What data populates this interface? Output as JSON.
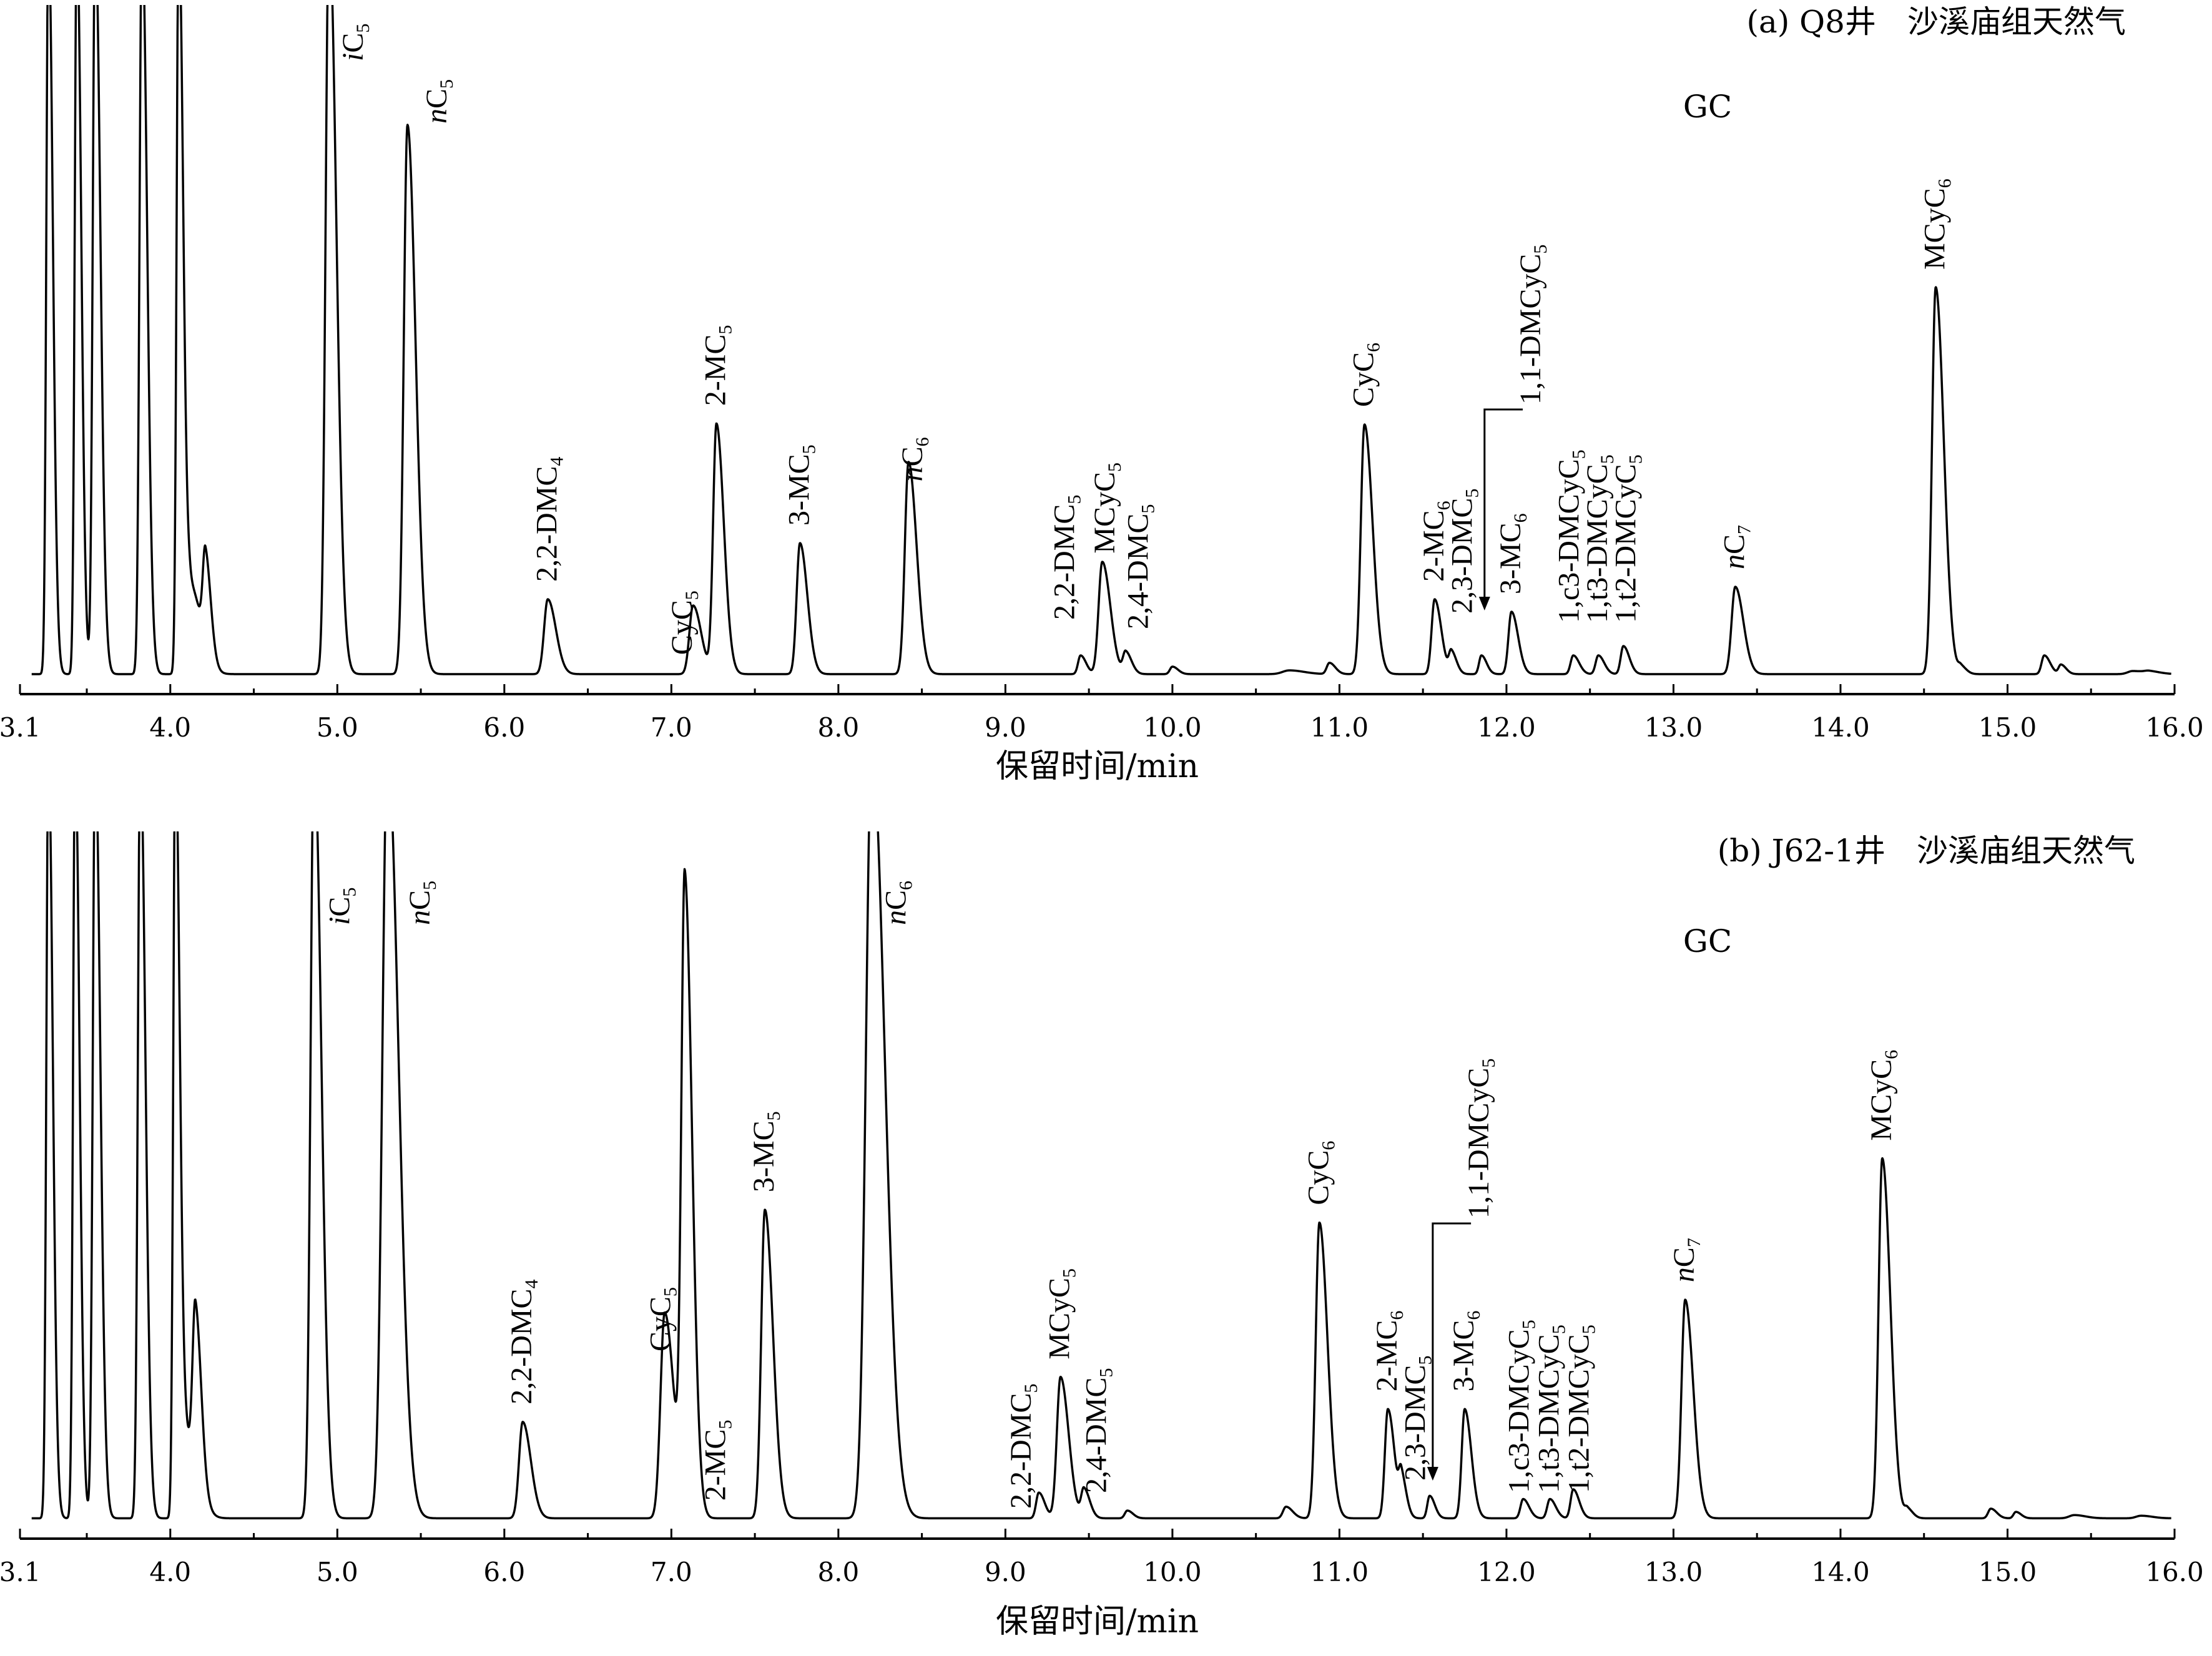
{
  "axis_title": "保留时间/min",
  "chart_data": [
    {
      "type": "line",
      "title": "(a) Q8井　沙溪庙组天然气",
      "subtitle": "GC",
      "xlabel": "保留时间/min",
      "xlim": [
        3.1,
        16.0
      ],
      "x_ticks": [
        "3.1",
        "4.0",
        "5.0",
        "6.0",
        "7.0",
        "8.0",
        "9.0",
        "10.0",
        "11.0",
        "12.0",
        "13.0",
        "14.0",
        "15.0",
        "16.0"
      ],
      "baseline": 0.02,
      "peaks": [
        {
          "t": 3.27,
          "h": 1.2,
          "w": 0.012
        },
        {
          "t": 3.44,
          "h": 1.2,
          "w": 0.012
        },
        {
          "t": 3.55,
          "h": 1.2,
          "w": 0.014
        },
        {
          "t": 3.83,
          "h": 1.2,
          "w": 0.014
        },
        {
          "t": 4.05,
          "h": 1.2,
          "w": 0.012
        },
        {
          "t": 4.12,
          "h": 0.14,
          "w": 0.03
        },
        {
          "t": 4.21,
          "h": 0.15,
          "w": 0.015
        },
        {
          "t": 4.95,
          "h": 1.2,
          "w": 0.02
        },
        {
          "t": 5.42,
          "h": 0.88,
          "w": 0.022
        },
        {
          "t": 6.26,
          "h": 0.12,
          "w": 0.022
        },
        {
          "t": 7.13,
          "h": 0.11,
          "w": 0.022
        },
        {
          "t": 7.27,
          "h": 0.4,
          "w": 0.02
        },
        {
          "t": 7.77,
          "h": 0.21,
          "w": 0.02
        },
        {
          "t": 8.42,
          "h": 0.34,
          "w": 0.022
        },
        {
          "t": 9.45,
          "h": 0.03,
          "w": 0.015
        },
        {
          "t": 9.58,
          "h": 0.18,
          "w": 0.022
        },
        {
          "t": 9.72,
          "h": 0.035,
          "w": 0.016
        },
        {
          "t": 10.0,
          "h": 0.012,
          "w": 0.015
        },
        {
          "t": 10.7,
          "h": 0.006,
          "w": 0.04
        },
        {
          "t": 10.94,
          "h": 0.018,
          "w": 0.016
        },
        {
          "t": 11.15,
          "h": 0.4,
          "w": 0.022
        },
        {
          "t": 11.57,
          "h": 0.12,
          "w": 0.018
        },
        {
          "t": 11.67,
          "h": 0.035,
          "w": 0.014
        },
        {
          "t": 11.85,
          "h": 0.03,
          "w": 0.014
        },
        {
          "t": 12.03,
          "h": 0.1,
          "w": 0.018
        },
        {
          "t": 12.4,
          "h": 0.03,
          "w": 0.016
        },
        {
          "t": 12.55,
          "h": 0.03,
          "w": 0.016
        },
        {
          "t": 12.7,
          "h": 0.045,
          "w": 0.016
        },
        {
          "t": 13.37,
          "h": 0.14,
          "w": 0.022
        },
        {
          "t": 14.57,
          "h": 0.62,
          "w": 0.022
        },
        {
          "t": 14.72,
          "h": 0.012,
          "w": 0.015
        },
        {
          "t": 15.22,
          "h": 0.03,
          "w": 0.016
        },
        {
          "t": 15.32,
          "h": 0.015,
          "w": 0.014
        },
        {
          "t": 15.75,
          "h": 0.005,
          "w": 0.03
        },
        {
          "t": 15.85,
          "h": 0.004,
          "w": 0.03
        }
      ],
      "labels": [
        {
          "t": 5.1,
          "text": "iC5",
          "italic": true
        },
        {
          "t": 5.6,
          "text": "nC5",
          "italic": true
        },
        {
          "t": 6.26,
          "text": "2,2-DMC4"
        },
        {
          "t": 7.07,
          "text": "CyC5"
        },
        {
          "t": 7.27,
          "text": "2-MC5"
        },
        {
          "t": 7.77,
          "text": "3-MC5"
        },
        {
          "t": 8.45,
          "text": "nC6",
          "italic": true
        },
        {
          "t": 9.36,
          "text": "2,2-DMC5"
        },
        {
          "t": 9.6,
          "text": "MCyC5"
        },
        {
          "t": 9.8,
          "text": "2,4-DMC5"
        },
        {
          "t": 11.15,
          "text": "CyC6"
        },
        {
          "t": 11.57,
          "text": "2-MC6"
        },
        {
          "t": 11.74,
          "text": "2,3-DMC5"
        },
        {
          "t": 12.03,
          "text": "3-MC6"
        },
        {
          "t": 12.15,
          "text": "1,1-DMCyC5"
        },
        {
          "t": 12.38,
          "text": "1,c3-DMCyC5"
        },
        {
          "t": 12.55,
          "text": "1,t3-DMCyC5"
        },
        {
          "t": 12.72,
          "text": "1,t2-DMCyC5"
        },
        {
          "t": 13.37,
          "text": "nC7",
          "italic": true
        },
        {
          "t": 14.57,
          "text": "MCyC6"
        }
      ]
    },
    {
      "type": "line",
      "title": "(b) J62-1井　沙溪庙组天然气",
      "subtitle": "GC",
      "xlabel": "保留时间/min",
      "xlim": [
        3.1,
        16.0
      ],
      "x_ticks": [
        "3.1",
        "4.0",
        "5.0",
        "6.0",
        "7.0",
        "8.0",
        "9.0",
        "10.0",
        "11.0",
        "12.0",
        "13.0",
        "14.0",
        "15.0",
        "16.0"
      ],
      "baseline": 0.02,
      "peaks": [
        {
          "t": 3.27,
          "h": 1.2,
          "w": 0.012
        },
        {
          "t": 3.43,
          "h": 1.2,
          "w": 0.012
        },
        {
          "t": 3.55,
          "h": 1.2,
          "w": 0.014
        },
        {
          "t": 3.82,
          "h": 1.2,
          "w": 0.014
        },
        {
          "t": 4.03,
          "h": 1.2,
          "w": 0.012
        },
        {
          "t": 4.1,
          "h": 0.12,
          "w": 0.03
        },
        {
          "t": 4.15,
          "h": 0.25,
          "w": 0.016
        },
        {
          "t": 4.86,
          "h": 1.2,
          "w": 0.02
        },
        {
          "t": 5.3,
          "h": 1.2,
          "w": 0.03
        },
        {
          "t": 6.11,
          "h": 0.15,
          "w": 0.022
        },
        {
          "t": 6.96,
          "h": 0.32,
          "w": 0.025
        },
        {
          "t": 7.08,
          "h": 0.98,
          "w": 0.02
        },
        {
          "t": 7.56,
          "h": 0.48,
          "w": 0.022
        },
        {
          "t": 8.2,
          "h": 1.2,
          "w": 0.035
        },
        {
          "t": 9.2,
          "h": 0.04,
          "w": 0.016
        },
        {
          "t": 9.33,
          "h": 0.22,
          "w": 0.022
        },
        {
          "t": 9.47,
          "h": 0.045,
          "w": 0.016
        },
        {
          "t": 9.73,
          "h": 0.012,
          "w": 0.015
        },
        {
          "t": 10.68,
          "h": 0.018,
          "w": 0.018
        },
        {
          "t": 10.88,
          "h": 0.46,
          "w": 0.022
        },
        {
          "t": 11.29,
          "h": 0.17,
          "w": 0.018
        },
        {
          "t": 11.37,
          "h": 0.06,
          "w": 0.014
        },
        {
          "t": 11.54,
          "h": 0.035,
          "w": 0.014
        },
        {
          "t": 11.75,
          "h": 0.17,
          "w": 0.018
        },
        {
          "t": 12.1,
          "h": 0.03,
          "w": 0.016
        },
        {
          "t": 12.26,
          "h": 0.03,
          "w": 0.016
        },
        {
          "t": 12.4,
          "h": 0.045,
          "w": 0.016
        },
        {
          "t": 13.07,
          "h": 0.34,
          "w": 0.022
        },
        {
          "t": 14.25,
          "h": 0.56,
          "w": 0.022
        },
        {
          "t": 14.4,
          "h": 0.014,
          "w": 0.015
        },
        {
          "t": 14.9,
          "h": 0.015,
          "w": 0.016
        },
        {
          "t": 15.05,
          "h": 0.01,
          "w": 0.014
        },
        {
          "t": 15.4,
          "h": 0.005,
          "w": 0.03
        },
        {
          "t": 15.8,
          "h": 0.004,
          "w": 0.03
        }
      ],
      "labels": [
        {
          "t": 5.02,
          "text": "iC5",
          "italic": true
        },
        {
          "t": 5.5,
          "text": "nC5",
          "italic": true
        },
        {
          "t": 6.11,
          "text": "2,2-DMC4"
        },
        {
          "t": 6.94,
          "text": "CyC5"
        },
        {
          "t": 7.27,
          "text": "2-MC5"
        },
        {
          "t": 7.56,
          "text": "3-MC5"
        },
        {
          "t": 8.35,
          "text": "nC6",
          "italic": true
        },
        {
          "t": 9.1,
          "text": "2,2-DMC5"
        },
        {
          "t": 9.33,
          "text": "MCyC5"
        },
        {
          "t": 9.55,
          "text": "2,4-DMC5"
        },
        {
          "t": 10.88,
          "text": "CyC6"
        },
        {
          "t": 11.29,
          "text": "2-MC6"
        },
        {
          "t": 11.46,
          "text": "2,3-DMC5"
        },
        {
          "t": 11.75,
          "text": "3-MC6"
        },
        {
          "t": 11.84,
          "text": "1,1-DMCyC5"
        },
        {
          "t": 12.08,
          "text": "1,c3-DMCyC5"
        },
        {
          "t": 12.26,
          "text": "1,t3-DMCyC5"
        },
        {
          "t": 12.44,
          "text": "1,t2-DMCyC5"
        },
        {
          "t": 13.07,
          "text": "nC7",
          "italic": true
        },
        {
          "t": 14.25,
          "text": "MCyC6"
        }
      ]
    }
  ]
}
